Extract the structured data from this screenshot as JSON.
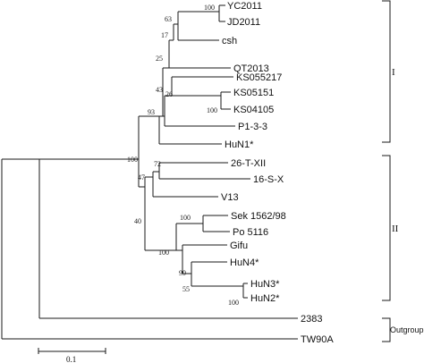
{
  "tree": {
    "taxa": {
      "yc2011": "YC2011",
      "jd2011": "JD2011",
      "csh": "csh",
      "qt2013": "QT2013",
      "ks055217": "KS055217",
      "ks05151": "KS05151",
      "ks04105": "KS04105",
      "p133": "P1-3-3",
      "hun1": "HuN1*",
      "t26xii": "26-T-XII",
      "s16x": "16-S-X",
      "v13": "V13",
      "sek": "Sek 1562/98",
      "po5116": "Po 5116",
      "gifu": "Gifu",
      "hun4": "HuN4*",
      "hun3": "HuN3*",
      "hun2": "HuN2*",
      "n2383": "2383",
      "tw90a": "TW90A"
    },
    "support": {
      "yc_jd": "100",
      "yc_jd_csh": "63",
      "top_trio_qt": "17",
      "upper_pair": "25",
      "ks_pair": "100",
      "ks_group": "26",
      "ks_p1": "43",
      "group1_core": "93",
      "t26_s16": "72",
      "t26_s16_v13": "47",
      "sek_po": "100",
      "hun2_hun3": "100",
      "hun234": "55",
      "gifu_hun": "99",
      "group2_b": "100",
      "group2": "40",
      "ingroup": "100"
    },
    "groups": {
      "group_i": "I",
      "group_ii": "II",
      "outgroup": "Outgroup"
    },
    "scale_bar": {
      "label": "0.1"
    }
  }
}
